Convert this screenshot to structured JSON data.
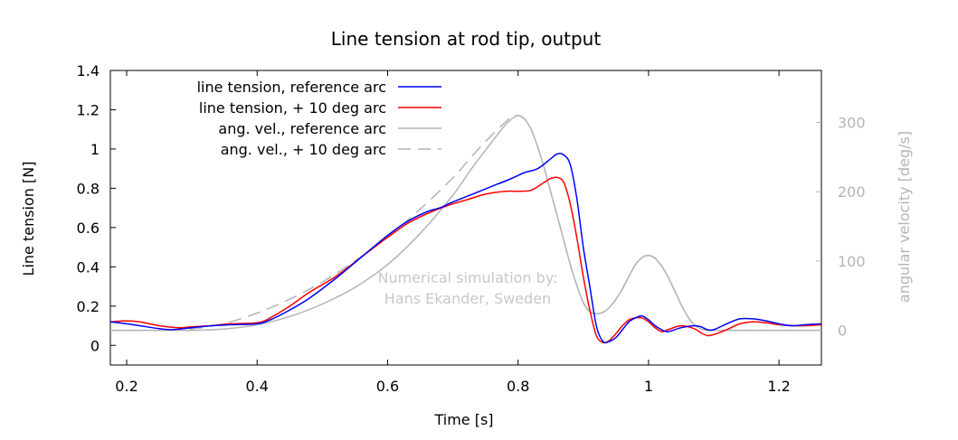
{
  "chart_data": {
    "type": "line",
    "title": "Line tension at rod tip, output",
    "xlabel": "Time [s]",
    "ylabel": "Line tension [N]",
    "y2label": "angular velocity [deg/s]",
    "xlim": [
      0.175,
      1.265
    ],
    "ylim": [
      -0.1,
      1.4
    ],
    "y2lim": [
      -50,
      375
    ],
    "xticks": [
      "0.2",
      "0.4",
      "0.6",
      "0.8",
      "1",
      "1.2"
    ],
    "yticks": [
      "0",
      "0.2",
      "0.4",
      "0.6",
      "0.8",
      "1",
      "1.2",
      "1.4"
    ],
    "y2ticks": [
      "0",
      "100",
      "200",
      "300"
    ],
    "grid": false,
    "legend_position": "top-left",
    "annotation": [
      "Numerical simulation by:",
      "Hans Ekander, Sweden"
    ],
    "series": [
      {
        "name": "line tension, reference arc",
        "axis": "left",
        "color": "#0000ff",
        "dash": "solid",
        "x": [
          0.175,
          0.2,
          0.22,
          0.25,
          0.27,
          0.3,
          0.33,
          0.36,
          0.4,
          0.42,
          0.45,
          0.48,
          0.52,
          0.56,
          0.6,
          0.63,
          0.66,
          0.68,
          0.7,
          0.73,
          0.76,
          0.79,
          0.81,
          0.83,
          0.85,
          0.86,
          0.87,
          0.88,
          0.89,
          0.9,
          0.91,
          0.92,
          0.93,
          0.94,
          0.95,
          0.96,
          0.97,
          0.98,
          0.99,
          1.0,
          1.01,
          1.02,
          1.03,
          1.05,
          1.07,
          1.08,
          1.09,
          1.1,
          1.12,
          1.14,
          1.16,
          1.18,
          1.2,
          1.22,
          1.24,
          1.265
        ],
        "values": [
          0.12,
          0.11,
          0.1,
          0.085,
          0.08,
          0.09,
          0.1,
          0.105,
          0.11,
          0.13,
          0.18,
          0.24,
          0.34,
          0.45,
          0.56,
          0.63,
          0.68,
          0.7,
          0.73,
          0.77,
          0.81,
          0.85,
          0.88,
          0.9,
          0.95,
          0.975,
          0.97,
          0.92,
          0.75,
          0.5,
          0.3,
          0.1,
          0.02,
          0.02,
          0.04,
          0.08,
          0.12,
          0.14,
          0.15,
          0.13,
          0.1,
          0.08,
          0.07,
          0.09,
          0.1,
          0.095,
          0.08,
          0.08,
          0.11,
          0.135,
          0.135,
          0.125,
          0.11,
          0.1,
          0.105,
          0.11
        ]
      },
      {
        "name": "line tension, + 10 deg arc",
        "axis": "left",
        "color": "#ff0000",
        "dash": "solid",
        "x": [
          0.175,
          0.2,
          0.22,
          0.25,
          0.28,
          0.3,
          0.33,
          0.36,
          0.4,
          0.42,
          0.45,
          0.48,
          0.52,
          0.56,
          0.6,
          0.63,
          0.66,
          0.69,
          0.72,
          0.75,
          0.78,
          0.8,
          0.82,
          0.84,
          0.85,
          0.86,
          0.87,
          0.88,
          0.89,
          0.9,
          0.91,
          0.92,
          0.93,
          0.94,
          0.95,
          0.96,
          0.97,
          0.98,
          0.99,
          1.0,
          1.01,
          1.02,
          1.03,
          1.05,
          1.07,
          1.08,
          1.09,
          1.1,
          1.12,
          1.14,
          1.16,
          1.18,
          1.2,
          1.22,
          1.24,
          1.265
        ],
        "values": [
          0.12,
          0.125,
          0.12,
          0.1,
          0.09,
          0.095,
          0.1,
          0.11,
          0.115,
          0.14,
          0.2,
          0.27,
          0.35,
          0.45,
          0.55,
          0.62,
          0.67,
          0.71,
          0.74,
          0.77,
          0.785,
          0.785,
          0.79,
          0.83,
          0.85,
          0.855,
          0.83,
          0.72,
          0.55,
          0.35,
          0.18,
          0.05,
          0.015,
          0.025,
          0.06,
          0.1,
          0.13,
          0.14,
          0.14,
          0.12,
          0.09,
          0.07,
          0.08,
          0.1,
          0.085,
          0.065,
          0.05,
          0.055,
          0.08,
          0.11,
          0.12,
          0.115,
          0.105,
          0.1,
          0.1,
          0.105
        ]
      },
      {
        "name": "ang. vel., reference arc",
        "axis": "right",
        "color": "#b4b4b4",
        "dash": "solid",
        "x": [
          0.175,
          0.2,
          0.25,
          0.3,
          0.35,
          0.4,
          0.45,
          0.5,
          0.55,
          0.6,
          0.65,
          0.7,
          0.73,
          0.76,
          0.78,
          0.79,
          0.8,
          0.81,
          0.82,
          0.83,
          0.84,
          0.85,
          0.86,
          0.87,
          0.88,
          0.89,
          0.9,
          0.91,
          0.92,
          0.93,
          0.94,
          0.95,
          0.96,
          0.97,
          0.98,
          0.99,
          1.0,
          1.01,
          1.02,
          1.03,
          1.04,
          1.05,
          1.06,
          1.07,
          1.08,
          1.09,
          1.1,
          1.12,
          1.15,
          1.2,
          1.265
        ],
        "values": [
          0,
          0,
          0,
          0,
          2,
          8,
          20,
          38,
          62,
          95,
          140,
          195,
          235,
          272,
          296,
          305,
          310,
          305,
          290,
          265,
          235,
          200,
          165,
          130,
          95,
          65,
          40,
          27,
          24,
          26,
          33,
          45,
          60,
          78,
          95,
          105,
          108,
          104,
          93,
          77,
          57,
          37,
          20,
          8,
          2,
          0,
          0,
          0,
          0,
          0,
          0
        ]
      },
      {
        "name": "ang. vel., + 10 deg arc",
        "axis": "right",
        "color": "#b4b4b4",
        "dash": "dashed",
        "x": [
          0.175,
          0.2,
          0.25,
          0.3,
          0.35,
          0.4,
          0.45,
          0.5,
          0.55,
          0.6,
          0.65,
          0.7,
          0.73,
          0.76,
          0.78,
          0.79,
          0.8,
          0.81,
          0.82,
          0.83,
          0.84,
          0.85,
          0.86,
          0.87,
          0.88,
          0.89,
          0.9,
          0.91,
          0.92,
          0.93,
          0.94,
          0.95,
          0.96,
          0.97,
          0.98,
          0.99,
          1.0,
          1.01,
          1.02,
          1.03,
          1.04,
          1.05,
          1.06,
          1.07,
          1.08,
          1.09,
          1.1,
          1.12,
          1.15,
          1.2,
          1.265
        ],
        "values": [
          0,
          0,
          0,
          2,
          10,
          25,
          45,
          70,
          100,
          135,
          175,
          220,
          252,
          282,
          300,
          308,
          310,
          305,
          290,
          265,
          235,
          200,
          165,
          130,
          95,
          65,
          40,
          27,
          24,
          26,
          33,
          45,
          60,
          78,
          95,
          105,
          108,
          104,
          93,
          77,
          57,
          37,
          20,
          8,
          2,
          0,
          0,
          0,
          0,
          0,
          0
        ]
      }
    ]
  }
}
